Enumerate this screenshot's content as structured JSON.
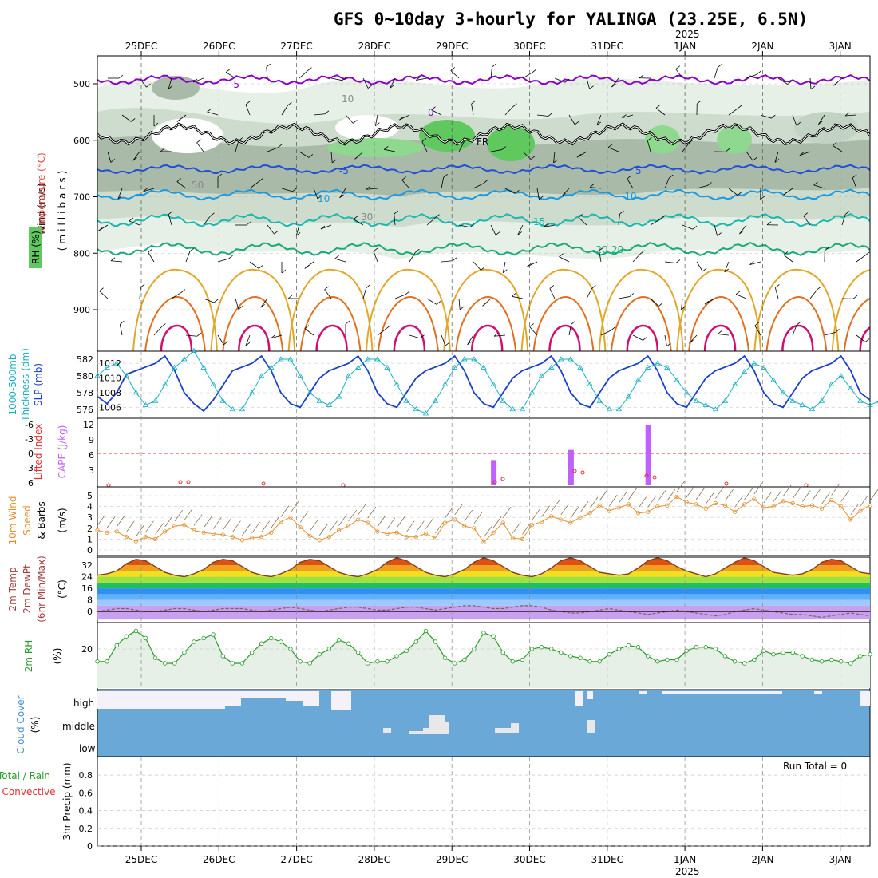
{
  "title": "GFS 0~10day 3-hourly for YALINGA (23.25E, 6.5N)",
  "date_labels": [
    "25DEC",
    "26DEC",
    "27DEC",
    "28DEC",
    "29DEC",
    "30DEC",
    "31DEC",
    "1JAN",
    "2JAN",
    "3JAN"
  ],
  "year_label": "2025",
  "run_total_label": "Run Total = 0",
  "cloud_levels": [
    "high",
    "middle",
    "low"
  ],
  "colors": {
    "rh_dark": "#9aaa9a",
    "rh_mid": "#c2d2c2",
    "rh_light": "#e4efe4",
    "rh_green": "#5fc95f",
    "temp_purple": "#8a00c8",
    "temp_black": "#000000",
    "temp_blue": "#1f4fd6",
    "temp_lblue": "#1a9ae0",
    "temp_teal": "#1bb8b0",
    "temp_green": "#1aaa7a",
    "temp_yellow": "#e0a82a",
    "temp_orange": "#e07020",
    "temp_magenta": "#d01070",
    "slp": "#1a3fc8",
    "thickness": "#1ab0c0",
    "cape": "#c060ff",
    "lifted_index": "#e03030",
    "wind10m": "#e09030",
    "rh2m": "#2a9a2a",
    "cloud": "#6aa8d8"
  },
  "panels": {
    "upper_air": {
      "ylabel_parts": [
        "Wind (m/s)",
        "Temperature (°C)",
        "RH (%)",
        "(millibars)"
      ],
      "pressure_ticks": [
        500,
        600,
        700,
        800,
        900
      ],
      "contour_labels": [
        "-5",
        "0",
        "FR",
        "-5",
        "5",
        "-10",
        "10",
        "15",
        "-20",
        "20",
        "50",
        "30",
        "10"
      ]
    },
    "slp": {
      "ylabel_parts": [
        "1000-500mb",
        "Thickness (dm)",
        "SLP (mb)"
      ],
      "left_ticks": [
        582,
        580,
        578,
        576
      ],
      "right_ticks": [
        1012,
        1010,
        1008,
        1006
      ]
    },
    "cape": {
      "ylabel_parts": [
        "Lifted Index",
        "CAPE (J/kg)"
      ],
      "left_ticks": [
        "-6",
        "-3",
        "0",
        "3",
        "6"
      ],
      "right_ticks": [
        12,
        9,
        6,
        3
      ]
    },
    "wind10m": {
      "ylabel_parts": [
        "10m Wind",
        "Speed",
        "& Barbs",
        "(m/s)"
      ],
      "ticks": [
        5,
        4,
        3,
        2,
        1,
        0
      ]
    },
    "temp2m": {
      "ylabel_parts": [
        "2m Temp",
        "2m DewPt",
        "(6hr Min/Max)",
        "(°C)"
      ],
      "ticks": [
        32,
        24,
        16,
        8,
        0
      ]
    },
    "rh2m": {
      "ylabel_parts": [
        "2m RH",
        "(%)"
      ],
      "ticks": [
        20
      ]
    },
    "cloud": {
      "ylabel_parts": [
        "Cloud Cover",
        "(%)"
      ]
    },
    "precip": {
      "ylabel_parts": [
        "Total / Rain",
        "Convective",
        "3hr Precip (mm)"
      ],
      "ticks": [
        "0.8",
        "0.6",
        "0.4",
        "0.2",
        "0"
      ]
    }
  },
  "chart_data": [
    {
      "type": "line",
      "name": "SLP",
      "ylabel": "SLP (mb)",
      "x_step_hours": 3,
      "x_start": "24DEC 12Z",
      "values": [
        1007.5,
        1006.5,
        1008,
        1010.5,
        1011,
        1011.5,
        1012,
        1013,
        1011,
        1008,
        1006.5,
        1005.5,
        1007,
        1009,
        1011,
        1011.5,
        1012,
        1013,
        1011,
        1008,
        1006.5,
        1006,
        1008,
        1010,
        1011,
        1011.5,
        1012,
        1013,
        1011,
        1008,
        1006.5,
        1006,
        1008,
        1010,
        1011,
        1011.5,
        1012,
        1013,
        1011,
        1008,
        1006.5,
        1006,
        1008,
        1010,
        1011,
        1011.5,
        1012,
        1013,
        1011,
        1008,
        1006.5,
        1006,
        1008,
        1010,
        1011,
        1011.5,
        1012,
        1013,
        1011,
        1008,
        1006.5,
        1006,
        1008,
        1010,
        1011,
        1011.5,
        1012,
        1013,
        1011,
        1008,
        1006.5,
        1006,
        1008,
        1010,
        1011,
        1011.5,
        1012,
        1013,
        1011,
        1008,
        1007
      ]
    },
    {
      "type": "line",
      "name": "1000-500mb Thickness",
      "ylabel": "Thickness (dm)",
      "values": [
        580,
        581,
        581.5,
        580,
        578,
        576.5,
        577,
        579,
        581,
        582,
        583,
        581,
        579,
        577,
        576,
        576,
        578,
        580,
        581,
        582,
        582,
        580,
        578,
        577,
        576.5,
        577.5,
        580,
        581,
        582,
        582,
        581,
        579,
        577,
        576,
        575.5,
        577,
        579,
        581,
        582,
        582,
        581,
        579,
        577,
        576,
        576,
        578,
        580,
        581,
        582,
        582,
        581,
        579,
        577,
        576,
        576,
        577.5,
        579.5,
        581,
        581.5,
        581,
        579.5,
        578,
        577,
        576.5,
        576,
        577,
        579,
        580.5,
        581.5,
        581,
        579.5,
        578,
        577,
        576.5,
        576,
        577,
        579,
        580,
        578.5,
        577,
        576.5,
        577
      ]
    },
    {
      "type": "bar",
      "name": "CAPE",
      "ylabel": "CAPE (J/kg)",
      "categories": [
        "29DEC 15Z",
        "30DEC 15Z",
        "31DEC 15Z"
      ],
      "values": [
        5,
        7,
        12
      ]
    },
    {
      "type": "line",
      "name": "10m Wind Speed",
      "ylabel": "(m/s)",
      "values": [
        1.8,
        1.6,
        1.7,
        1.2,
        0.8,
        1.2,
        1.0,
        1.7,
        2.2,
        2.3,
        1.8,
        1.6,
        1.5,
        1.4,
        1.2,
        0.9,
        1.1,
        1.2,
        1.6,
        2.6,
        3.0,
        2.1,
        1.3,
        0.9,
        1.2,
        1.8,
        2.2,
        2.8,
        2.5,
        1.7,
        1.5,
        1.6,
        1.2,
        1.2,
        1.5,
        1.1,
        2.5,
        2.8,
        2.2,
        2.0,
        0.7,
        1.6,
        2.5,
        1.1,
        1.0,
        2.3,
        2.6,
        3.1,
        2.8,
        2.5,
        3.0,
        3.4,
        4.1,
        3.6,
        3.9,
        4.2,
        3.4,
        3.5,
        4.0,
        4.1,
        4.9,
        4.4,
        4.2,
        3.8,
        4.3,
        4.1,
        3.5,
        4.2,
        4.7,
        3.9,
        4.0,
        4.5,
        4.3,
        4.0,
        4.1,
        3.8,
        4.6,
        4.0,
        2.8,
        3.6,
        4.1
      ]
    },
    {
      "type": "area",
      "name": "2m Temp",
      "ylabel": "(°C)",
      "values": [
        25,
        26,
        28,
        33,
        36,
        35,
        31,
        27,
        25,
        24,
        26,
        29,
        34,
        36,
        35,
        31,
        27,
        25,
        24,
        26,
        29,
        34,
        36,
        35,
        31,
        27,
        25,
        24,
        26,
        29,
        34,
        37,
        35,
        31,
        27,
        25,
        24,
        26,
        29,
        34,
        37,
        35,
        31,
        27,
        25,
        24,
        26,
        30,
        35,
        37,
        35,
        31,
        27,
        26,
        25,
        26,
        30,
        35,
        37,
        35,
        31,
        28,
        26,
        24,
        26,
        30,
        34,
        37,
        35,
        31,
        27,
        26,
        25,
        26,
        29,
        34,
        36,
        35,
        31,
        27,
        26
      ]
    },
    {
      "type": "line",
      "name": "2m DewPt",
      "ylabel": "(°C)",
      "values": [
        0,
        1,
        2,
        2,
        1,
        0,
        0,
        1,
        2,
        2,
        1,
        0,
        1,
        2,
        2,
        2,
        1,
        0,
        1,
        2,
        3,
        2,
        1,
        0,
        1,
        2,
        3,
        3,
        2,
        1,
        1,
        2,
        3,
        3,
        2,
        1,
        2,
        3,
        4,
        4,
        3,
        2,
        2,
        3,
        4,
        4,
        3,
        1,
        0,
        -1,
        -1,
        0,
        1,
        2,
        1,
        0,
        -1,
        -2,
        -1,
        0,
        1,
        0,
        -1,
        -2,
        -3,
        -2,
        0,
        1,
        2,
        1,
        0,
        -1,
        -2,
        -2,
        -3,
        -4,
        -3,
        -2,
        -1,
        -2,
        -3
      ]
    },
    {
      "type": "line",
      "name": "2m RH",
      "ylabel": "(%)",
      "values": [
        13,
        13,
        22,
        27,
        30,
        26,
        15,
        12,
        12,
        18,
        24,
        26,
        28,
        16,
        12,
        12,
        18,
        23,
        26,
        24,
        20,
        13,
        12,
        17,
        20,
        25,
        23,
        18,
        12,
        13,
        13,
        16,
        19,
        24,
        30,
        24,
        15,
        12,
        14,
        20,
        29,
        27,
        18,
        13,
        14,
        20,
        21,
        20,
        18,
        16,
        15,
        13,
        13,
        17,
        20,
        22,
        21,
        16,
        13,
        14,
        14,
        19,
        21,
        21,
        20,
        16,
        13,
        12,
        14,
        19,
        17,
        18,
        18,
        16,
        14,
        13,
        14,
        13,
        12,
        16,
        17
      ]
    },
    {
      "type": "bar",
      "name": "Precip",
      "ylabel": "3hr Precip (mm)",
      "ylim": [
        0,
        1
      ],
      "values": []
    }
  ]
}
